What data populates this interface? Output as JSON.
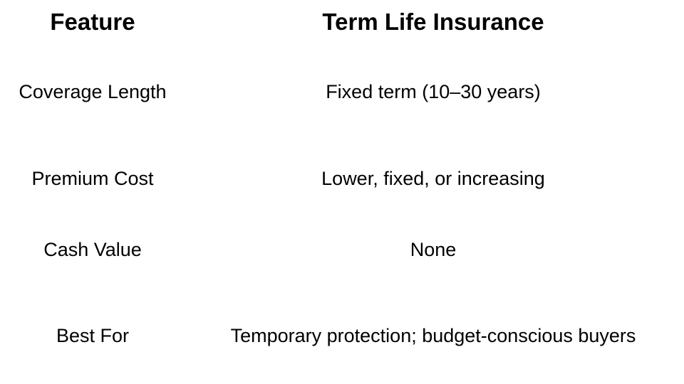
{
  "slide": {
    "background_color": "#ffffff",
    "text_color": "#000000"
  },
  "table": {
    "header": {
      "feature": "Feature",
      "value": "Term Life Insurance"
    },
    "rows": [
      {
        "feature": "Coverage Length",
        "value": "Fixed term (10–30 years)"
      },
      {
        "feature": "Premium Cost",
        "value": "Lower, fixed, or increasing"
      },
      {
        "feature": "Cash Value",
        "value": "None"
      },
      {
        "feature": "Best For",
        "value": "Temporary protection; budget-conscious buyers"
      }
    ]
  }
}
